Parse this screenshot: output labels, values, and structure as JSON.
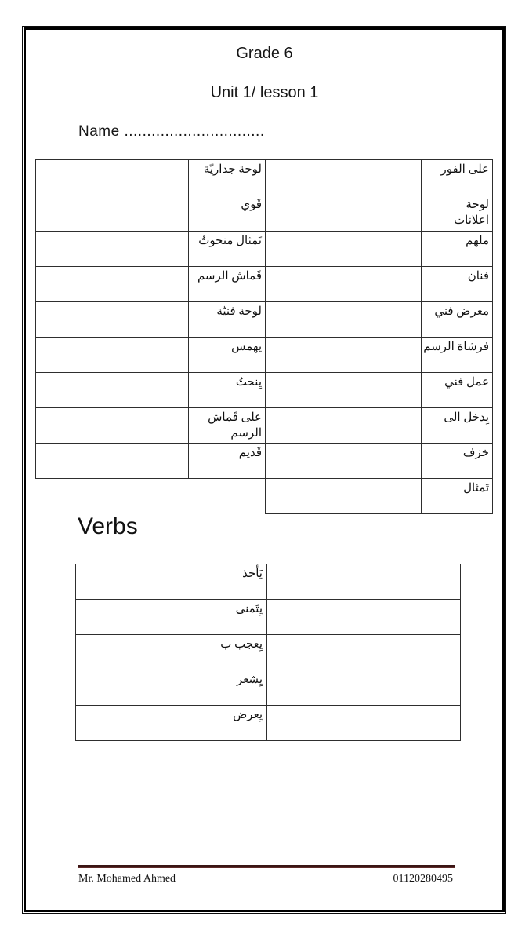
{
  "header": {
    "grade": "Grade 6",
    "unit": "Unit 1/ lesson 1",
    "name_line": "Name ..............................."
  },
  "vocab_table": {
    "rows": [
      {
        "right_term": "على الفور",
        "right_blank": "",
        "left_term": "لوحة جداريّة",
        "left_blank": ""
      },
      {
        "right_term": "لوحة\nاعلانات",
        "right_blank": "",
        "left_term": "قَوي",
        "left_blank": ""
      },
      {
        "right_term": "ملهم",
        "right_blank": "",
        "left_term": "تَمثال منحوتُ",
        "left_blank": ""
      },
      {
        "right_term": "فنان",
        "right_blank": "",
        "left_term": "قَماش الرسم",
        "left_blank": ""
      },
      {
        "right_term": "معرض فني",
        "right_blank": "",
        "left_term": "لوحة فنيّة",
        "left_blank": ""
      },
      {
        "right_term": "فرشاة الرسم",
        "right_blank": "",
        "left_term": "يهمس",
        "left_blank": ""
      },
      {
        "right_term": "عمل فني",
        "right_blank": "",
        "left_term": "يِنحتُ",
        "left_blank": ""
      },
      {
        "right_term": "يِدخل الى",
        "right_blank": "",
        "left_term": "على قَماش\nالرسم",
        "left_blank": ""
      },
      {
        "right_term": "خزف",
        "right_blank": "",
        "left_term": "قَديم",
        "left_blank": ""
      },
      {
        "right_term": "تَمثال",
        "right_blank": "",
        "half": true
      }
    ]
  },
  "verbs_table": {
    "heading": "Verbs",
    "rows": [
      "يَأخذ",
      "يِتَمنى",
      "يِعجب ب",
      "يِشعر",
      "يِعرض"
    ]
  },
  "footer": {
    "teacher": "Mr. Mohamed Ahmed",
    "phone": "01120280495",
    "line_color": "#5E2928"
  }
}
